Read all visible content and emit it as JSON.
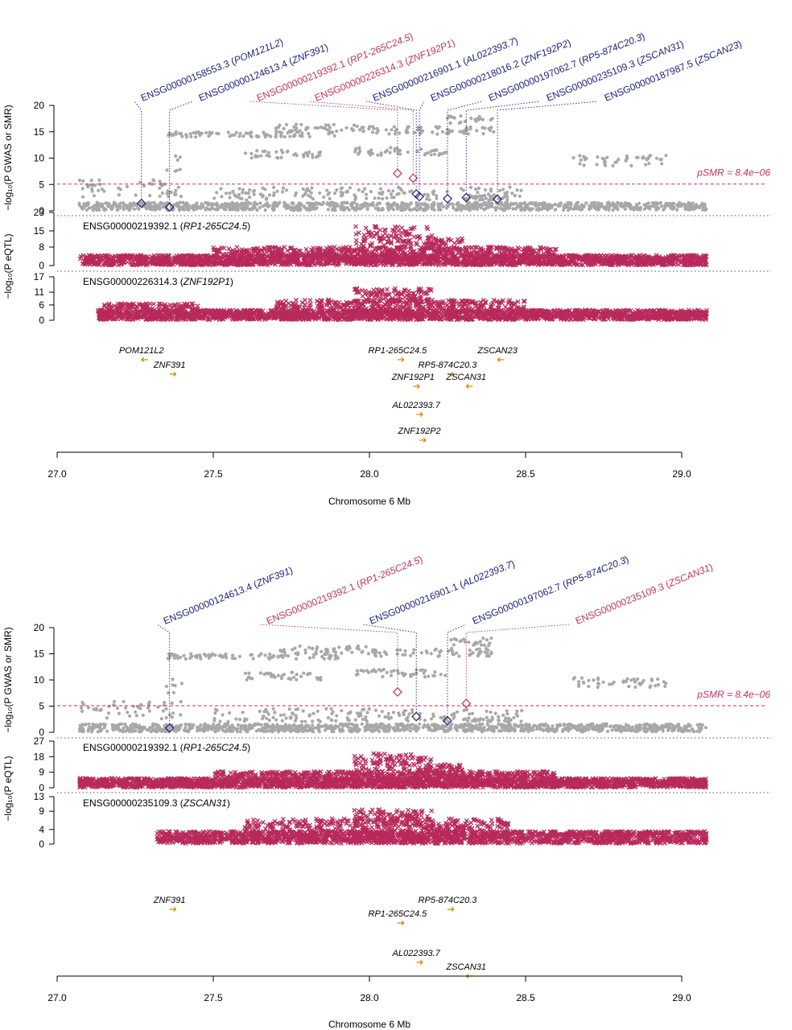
{
  "chart_data": [
    {
      "type": "scatter",
      "name": "SMR locus plot 1",
      "xlabel": "Chromosome 6 Mb",
      "xlim": [
        27.0,
        29.0
      ],
      "x_ticks": [
        "27.0",
        "27.5",
        "28.0",
        "28.5",
        "29.0"
      ],
      "gwas_panel": {
        "ylabel": "−log₁₀(P GWAS or SMR)",
        "ylim": [
          0,
          20
        ],
        "y_ticks": [
          "0",
          "5",
          "10",
          "15",
          "20"
        ],
        "threshold_label": "pSMR = 8.4e−06",
        "threshold": 5.08,
        "gwas_bands": [
          {
            "x": [
              27.07,
              29.08
            ],
            "y": [
              0.1,
              1.6
            ]
          },
          {
            "x": [
              27.07,
              27.4
            ],
            "y": [
              2.5,
              6.0
            ]
          },
          {
            "x": [
              27.35,
              27.4
            ],
            "y": [
              7.5,
              10.5
            ]
          },
          {
            "x": [
              27.35,
              27.9
            ],
            "y": [
              14.0,
              15.0
            ]
          },
          {
            "x": [
              27.6,
              27.85
            ],
            "y": [
              10.0,
              11.5
            ]
          },
          {
            "x": [
              27.7,
              28.0
            ],
            "y": [
              15.0,
              16.5
            ]
          },
          {
            "x": [
              27.95,
              28.25
            ],
            "y": [
              10.5,
              12.0
            ]
          },
          {
            "x": [
              28.0,
              28.4
            ],
            "y": [
              14.5,
              16.0
            ]
          },
          {
            "x": [
              28.25,
              28.4
            ],
            "y": [
              16.5,
              18.0
            ]
          },
          {
            "x": [
              28.3,
              28.45
            ],
            "y": [
              2.0,
              3.0
            ]
          },
          {
            "x": [
              28.65,
              28.95
            ],
            "y": [
              8.5,
              10.5
            ]
          },
          {
            "x": [
              27.5,
              28.5
            ],
            "y": [
              2.0,
              4.5
            ]
          }
        ],
        "smr_points": [
          {
            "probe": "ENSG00000158553.3",
            "gene": "POM121L2",
            "x": 27.27,
            "y": 1.4,
            "significant": false
          },
          {
            "probe": "ENSG00000124613.4",
            "gene": "ZNF391",
            "x": 27.36,
            "y": 0.7,
            "significant": false
          },
          {
            "probe": "ENSG00000219392.1",
            "gene": "RP1-265C24.5",
            "x": 28.09,
            "y": 7.1,
            "significant": true
          },
          {
            "probe": "ENSG00000226314.3",
            "gene": "ZNF192P1",
            "x": 28.14,
            "y": 6.2,
            "significant": true
          },
          {
            "probe": "ENSG00000216901.1",
            "gene": "AL022393.7",
            "x": 28.15,
            "y": 3.2,
            "significant": false
          },
          {
            "probe": "ENSG00000218016.2",
            "gene": "ZNF192P2",
            "x": 28.16,
            "y": 2.7,
            "significant": false
          },
          {
            "probe": "ENSG00000197062.7",
            "gene": "RP5-874C20.3",
            "x": 28.25,
            "y": 2.3,
            "significant": false
          },
          {
            "probe": "ENSG00000235109.3",
            "gene": "ZSCAN31",
            "x": 28.31,
            "y": 2.5,
            "significant": false
          },
          {
            "probe": "ENSG00000187987.5",
            "gene": "ZSCAN23",
            "x": 28.41,
            "y": 2.2,
            "significant": false
          }
        ],
        "colors": {
          "gwas": "#a8a8a8",
          "significant": "#c3325c",
          "nonsignificant": "#1b1f7a",
          "threshold": "#c3325c"
        }
      },
      "eqtl_ylabel": "−log₁₀(P eQTL)",
      "eqtl_panels": [
        {
          "probe": "ENSG00000219392.1",
          "gene": "RP1-265C24.5",
          "ylim": [
            0,
            23
          ],
          "y_ticks": [
            "0",
            "8",
            "15",
            "23"
          ],
          "bands": [
            {
              "x": [
                27.07,
                29.08
              ],
              "y": [
                0.2,
                4.5
              ]
            },
            {
              "x": [
                27.5,
                28.6
              ],
              "y": [
                4.5,
                8.0
              ]
            },
            {
              "x": [
                27.95,
                28.2
              ],
              "y": [
                8.0,
                17.0
              ]
            },
            {
              "x": [
                28.18,
                28.3
              ],
              "y": [
                7.0,
                12.0
              ]
            }
          ],
          "color": "#b8295a"
        },
        {
          "probe": "ENSG00000226314.3",
          "gene": "ZNF192P1",
          "ylim": [
            0,
            17
          ],
          "y_ticks": [
            "0",
            "6",
            "11",
            "17"
          ],
          "bands": [
            {
              "x": [
                27.13,
                29.08
              ],
              "y": [
                0.2,
                4.0
              ]
            },
            {
              "x": [
                27.15,
                27.45
              ],
              "y": [
                4.0,
                6.5
              ]
            },
            {
              "x": [
                27.7,
                28.5
              ],
              "y": [
                4.0,
                8.0
              ]
            },
            {
              "x": [
                27.95,
                28.2
              ],
              "y": [
                7.0,
                12.5
              ]
            }
          ],
          "color": "#b8295a"
        }
      ],
      "genes": [
        {
          "name": "POM121L2",
          "x": 27.27,
          "row": 0,
          "strand": "-"
        },
        {
          "name": "ZNF391",
          "x": 27.36,
          "row": 1,
          "strand": "+"
        },
        {
          "name": "RP1-265C24.5",
          "x": 28.09,
          "row": 0,
          "strand": "+"
        },
        {
          "name": "ZSCAN23",
          "x": 28.41,
          "row": 0,
          "strand": "-"
        },
        {
          "name": "RP5-874C20.3",
          "x": 28.25,
          "row": 1,
          "strand": "+"
        },
        {
          "name": "ZNF192P1",
          "x": 28.14,
          "row": 2,
          "strand": "+"
        },
        {
          "name": "ZSCAN31",
          "x": 28.31,
          "row": 2,
          "strand": "-"
        },
        {
          "name": "AL022393.7",
          "x": 28.15,
          "row": 3,
          "strand": "+"
        },
        {
          "name": "ZNF192P2",
          "x": 28.16,
          "row": 5,
          "strand": "+"
        }
      ]
    },
    {
      "type": "scatter",
      "name": "SMR locus plot 2",
      "xlabel": "Chromosome 6 Mb",
      "xlim": [
        27.0,
        29.0
      ],
      "x_ticks": [
        "27.0",
        "27.5",
        "28.0",
        "28.5",
        "29.0"
      ],
      "gwas_panel": {
        "ylabel": "−log₁₀(P GWAS or SMR)",
        "ylim": [
          0,
          20
        ],
        "y_ticks": [
          "0",
          "5",
          "10",
          "15",
          "20"
        ],
        "threshold_label": "pSMR = 8.4e−06",
        "threshold": 5.08,
        "gwas_bands": [
          {
            "x": [
              27.07,
              29.08
            ],
            "y": [
              0.1,
              1.6
            ]
          },
          {
            "x": [
              27.07,
              27.4
            ],
            "y": [
              2.5,
              6.0
            ]
          },
          {
            "x": [
              27.35,
              27.4
            ],
            "y": [
              7.5,
              10.5
            ]
          },
          {
            "x": [
              27.35,
              27.9
            ],
            "y": [
              14.0,
              15.0
            ]
          },
          {
            "x": [
              27.6,
              27.85
            ],
            "y": [
              10.0,
              11.5
            ]
          },
          {
            "x": [
              27.7,
              28.0
            ],
            "y": [
              15.0,
              16.5
            ]
          },
          {
            "x": [
              27.95,
              28.25
            ],
            "y": [
              10.5,
              12.0
            ]
          },
          {
            "x": [
              28.0,
              28.4
            ],
            "y": [
              14.5,
              16.0
            ]
          },
          {
            "x": [
              28.25,
              28.4
            ],
            "y": [
              16.5,
              18.0
            ]
          },
          {
            "x": [
              28.3,
              28.45
            ],
            "y": [
              2.0,
              3.0
            ]
          },
          {
            "x": [
              28.65,
              28.95
            ],
            "y": [
              8.5,
              10.5
            ]
          },
          {
            "x": [
              27.5,
              28.5
            ],
            "y": [
              2.0,
              4.5
            ]
          }
        ],
        "smr_points": [
          {
            "probe": "ENSG00000124613.4",
            "gene": "ZNF391",
            "x": 27.36,
            "y": 0.8,
            "significant": false
          },
          {
            "probe": "ENSG00000219392.1",
            "gene": "RP1-265C24.5",
            "x": 28.09,
            "y": 7.7,
            "significant": true
          },
          {
            "probe": "ENSG00000216901.1",
            "gene": "AL022393.7",
            "x": 28.15,
            "y": 3.0,
            "significant": false
          },
          {
            "probe": "ENSG00000197062.7",
            "gene": "RP5-874C20.3",
            "x": 28.25,
            "y": 2.2,
            "significant": false
          },
          {
            "probe": "ENSG00000235109.3",
            "gene": "ZSCAN31",
            "x": 28.31,
            "y": 5.5,
            "significant": true
          }
        ],
        "colors": {
          "gwas": "#a8a8a8",
          "significant": "#c3325c",
          "nonsignificant": "#1b1f7a",
          "threshold": "#c3325c"
        }
      },
      "eqtl_ylabel": "−log₁₀(P eQTL)",
      "eqtl_panels": [
        {
          "probe": "ENSG00000219392.1",
          "gene": "RP1-265C24.5",
          "ylim": [
            0,
            27
          ],
          "y_ticks": [
            "0",
            "9",
            "18",
            "27"
          ],
          "bands": [
            {
              "x": [
                27.07,
                29.08
              ],
              "y": [
                0.2,
                5.5
              ]
            },
            {
              "x": [
                27.5,
                28.6
              ],
              "y": [
                5.5,
                9.5
              ]
            },
            {
              "x": [
                27.95,
                28.2
              ],
              "y": [
                9.5,
                20.0
              ]
            },
            {
              "x": [
                28.18,
                28.3
              ],
              "y": [
                8.0,
                14.0
              ]
            }
          ],
          "color": "#b8295a"
        },
        {
          "probe": "ENSG00000235109.3",
          "gene": "ZSCAN31",
          "ylim": [
            0,
            13
          ],
          "y_ticks": [
            "0",
            "4",
            "9",
            "13"
          ],
          "bands": [
            {
              "x": [
                27.32,
                29.08
              ],
              "y": [
                0.2,
                3.5
              ]
            },
            {
              "x": [
                27.6,
                28.45
              ],
              "y": [
                3.0,
                7.0
              ]
            },
            {
              "x": [
                27.95,
                28.2
              ],
              "y": [
                5.0,
                9.5
              ]
            }
          ],
          "color": "#b8295a"
        }
      ],
      "genes": [
        {
          "name": "ZNF391",
          "x": 27.36,
          "row": 0,
          "strand": "+"
        },
        {
          "name": "RP5-874C20.3",
          "x": 28.25,
          "row": 0,
          "strand": "+"
        },
        {
          "name": "RP1-265C24.5",
          "x": 28.09,
          "row": 1,
          "strand": "+"
        },
        {
          "name": "AL022393.7",
          "x": 28.15,
          "row": 3,
          "strand": "+"
        },
        {
          "name": "ZSCAN31",
          "x": 28.31,
          "row": 4,
          "strand": "-"
        }
      ]
    }
  ]
}
